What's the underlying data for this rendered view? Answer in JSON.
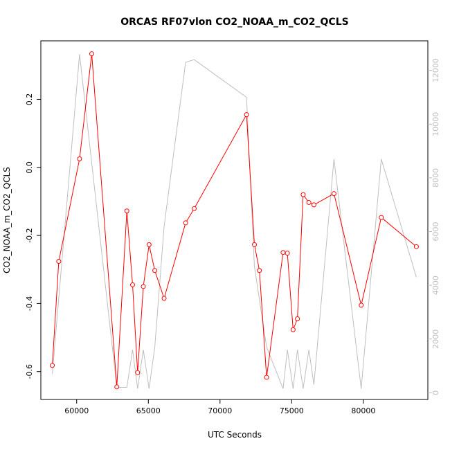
{
  "chart_data": {
    "type": "line",
    "title": "ORCAS RF07vlon CO2_NOAA_m_CO2_QCLS",
    "xlabel": "UTC Seconds",
    "ylabel": "CO2_NOAA_m_CO2_QCLS",
    "xlim": [
      57500,
      84500
    ],
    "ylim": [
      -0.682,
      0.372
    ],
    "y2lim": [
      -250,
      13100
    ],
    "x_ticks": [
      60000,
      65000,
      70000,
      75000,
      80000
    ],
    "x_tick_labels": [
      "60000",
      "65000",
      "70000",
      "75000",
      "80000"
    ],
    "y_ticks": [
      -0.6,
      -0.4,
      -0.2,
      0.0,
      0.2
    ],
    "y_tick_labels": [
      "-0.6",
      "-0.4",
      "-0.2",
      "0.0",
      "0.2"
    ],
    "y2_ticks": [
      0,
      2000,
      4000,
      6000,
      8000,
      10000,
      12000
    ],
    "y2_tick_labels": [
      "0",
      "2000",
      "4000",
      "6000",
      "8000",
      "10000",
      "12000"
    ],
    "grid": false,
    "colors": {
      "series": "#ff0000",
      "altitude": "#bebebe",
      "frame": "#000000"
    },
    "series": [
      {
        "color": "#ff0000",
        "marker": "open-circle",
        "x": [
          58300,
          58750,
          60200,
          61050,
          62800,
          63500,
          63900,
          64250,
          64650,
          65050,
          65450,
          66100,
          67600,
          68200,
          71850,
          72400,
          72750,
          73250,
          74400,
          74700,
          75100,
          75400,
          75800,
          76200,
          76550,
          77950,
          79850,
          81250,
          83700
        ],
        "y": [
          -0.582,
          -0.276,
          0.025,
          0.334,
          -0.645,
          -0.128,
          -0.345,
          -0.603,
          -0.35,
          -0.227,
          -0.303,
          -0.385,
          -0.163,
          -0.121,
          0.155,
          -0.227,
          -0.303,
          -0.617,
          -0.25,
          -0.252,
          -0.477,
          -0.445,
          -0.08,
          -0.103,
          -0.11,
          -0.077,
          -0.405,
          -0.147,
          -0.233
        ]
      },
      {
        "axis": "right",
        "color": "#bebebe",
        "x": [
          58300,
          60200,
          62800,
          63500,
          63900,
          64250,
          64650,
          65050,
          65450,
          66100,
          67600,
          68200,
          71850,
          72400,
          73250,
          74400,
          74700,
          75100,
          75400,
          75800,
          76200,
          76550,
          77950,
          79850,
          81250,
          83700
        ],
        "y": [
          700,
          12600,
          200,
          200,
          1600,
          150,
          1600,
          150,
          1700,
          6200,
          12300,
          12400,
          11000,
          4700,
          1700,
          150,
          1600,
          150,
          1600,
          150,
          1600,
          300,
          8700,
          150,
          8700,
          4300
        ]
      }
    ]
  }
}
